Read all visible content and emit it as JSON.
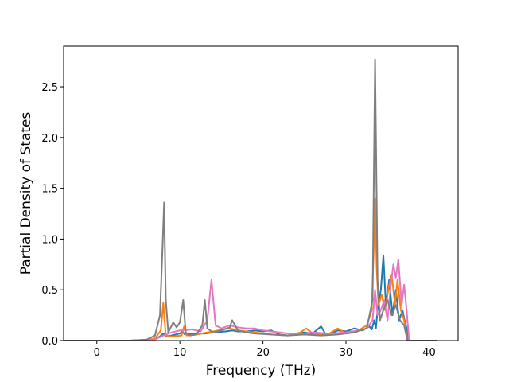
{
  "chart_data": {
    "type": "line",
    "title": "",
    "xlabel": "Frequency (THz)",
    "ylabel": "Partial Density of States",
    "xlim": [
      -4.0,
      43.5
    ],
    "ylim": [
      0.0,
      2.9
    ],
    "xticks": [
      0,
      10,
      20,
      30,
      40
    ],
    "xtick_labels": [
      "0",
      "10",
      "20",
      "30",
      "40"
    ],
    "yticks": [
      0.0,
      0.5,
      1.0,
      1.5,
      2.0,
      2.5
    ],
    "ytick_labels": [
      "0.0",
      "0.5",
      "1.0",
      "1.5",
      "2.0",
      "2.5"
    ],
    "grid": false,
    "legend": "none",
    "series": [
      {
        "color": "#1f77b4",
        "x": [
          -4,
          4,
          6,
          7,
          7.6,
          8,
          8.3,
          9,
          10,
          10.3,
          10.6,
          11.5,
          13,
          14,
          15.5,
          16.3,
          17,
          18,
          19,
          20,
          21,
          22,
          23,
          24,
          25,
          26,
          27,
          27.5,
          28,
          29,
          30,
          31,
          32,
          32.8,
          33.1,
          33.4,
          33.6,
          33.8,
          34.2,
          34.5,
          34.8,
          35.2,
          35.6,
          36,
          36.4,
          36.8,
          37,
          37.3,
          37.6,
          41
        ],
        "y": [
          0,
          0,
          0.005,
          0.02,
          0.04,
          0.07,
          0.04,
          0.05,
          0.07,
          0.09,
          0.06,
          0.07,
          0.07,
          0.08,
          0.09,
          0.1,
          0.09,
          0.09,
          0.1,
          0.09,
          0.1,
          0.06,
          0.05,
          0.07,
          0.08,
          0.07,
          0.14,
          0.07,
          0.06,
          0.1,
          0.09,
          0.12,
          0.1,
          0.14,
          0.11,
          0.2,
          0.12,
          0.3,
          0.5,
          0.84,
          0.35,
          0.6,
          0.25,
          0.5,
          0.2,
          0.3,
          0.22,
          0.12,
          0,
          0
        ]
      },
      {
        "color": "#ff7f0e",
        "x": [
          -4,
          4,
          6,
          7,
          7.7,
          8.0,
          8.3,
          9,
          10.2,
          10.5,
          10.8,
          12,
          13.3,
          14,
          15.2,
          16,
          17,
          19,
          21,
          23,
          24.5,
          25.2,
          26,
          27,
          28,
          29,
          30,
          31.5,
          32.5,
          33.1,
          33.3,
          33.5,
          33.7,
          33.9,
          34.3,
          34.7,
          35.2,
          35.5,
          35.9,
          36.2,
          36.6,
          37,
          37.4,
          41
        ],
        "y": [
          0,
          0,
          0.005,
          0.02,
          0.1,
          0.37,
          0.05,
          0.04,
          0.05,
          0.14,
          0.05,
          0.06,
          0.08,
          0.09,
          0.11,
          0.12,
          0.1,
          0.08,
          0.06,
          0.05,
          0.08,
          0.12,
          0.07,
          0.06,
          0.07,
          0.12,
          0.07,
          0.1,
          0.15,
          0.3,
          0.8,
          1.4,
          0.7,
          0.35,
          0.45,
          0.3,
          0.55,
          0.65,
          0.35,
          0.6,
          0.3,
          0.2,
          0,
          0
        ]
      },
      {
        "color": "#e377c2",
        "x": [
          -4,
          4,
          7,
          8,
          9,
          10,
          11.5,
          12.5,
          13.3,
          13.8,
          14.3,
          15,
          16,
          17,
          18,
          19,
          20,
          22,
          24,
          26,
          28,
          30,
          31.5,
          32.5,
          33.2,
          33.5,
          33.8,
          34.2,
          34.6,
          35,
          35.4,
          35.7,
          36.0,
          36.3,
          36.7,
          37.0,
          37.3,
          37.6,
          41
        ],
        "y": [
          0,
          0,
          0.01,
          0.05,
          0.08,
          0.1,
          0.11,
          0.09,
          0.2,
          0.6,
          0.15,
          0.12,
          0.15,
          0.13,
          0.12,
          0.12,
          0.1,
          0.08,
          0.06,
          0.08,
          0.07,
          0.08,
          0.1,
          0.12,
          0.2,
          0.5,
          0.25,
          0.3,
          0.4,
          0.2,
          0.55,
          0.75,
          0.62,
          0.8,
          0.35,
          0.55,
          0.3,
          0,
          0
        ]
      },
      {
        "color": "#7f7f7f",
        "x": [
          -4,
          4,
          6,
          7,
          7.6,
          7.9,
          8.1,
          8.3,
          8.6,
          9.2,
          9.6,
          10.0,
          10.4,
          10.7,
          11.2,
          12,
          12.7,
          13.0,
          13.3,
          14,
          15,
          16,
          16.3,
          17,
          18,
          19,
          21,
          23,
          25,
          27,
          29,
          31,
          32.5,
          33.2,
          33.5,
          33.8,
          34.1,
          34.5,
          35,
          35.5,
          36,
          36.5,
          37,
          37.4,
          41
        ],
        "y": [
          0,
          0,
          0.01,
          0.05,
          0.25,
          0.9,
          1.36,
          0.4,
          0.08,
          0.18,
          0.13,
          0.18,
          0.4,
          0.08,
          0.05,
          0.06,
          0.15,
          0.4,
          0.12,
          0.08,
          0.1,
          0.13,
          0.2,
          0.1,
          0.08,
          0.07,
          0.06,
          0.05,
          0.06,
          0.05,
          0.06,
          0.08,
          0.12,
          0.4,
          2.77,
          0.6,
          0.2,
          0.3,
          0.4,
          0.25,
          0.35,
          0.2,
          0.15,
          0,
          0
        ]
      }
    ]
  }
}
